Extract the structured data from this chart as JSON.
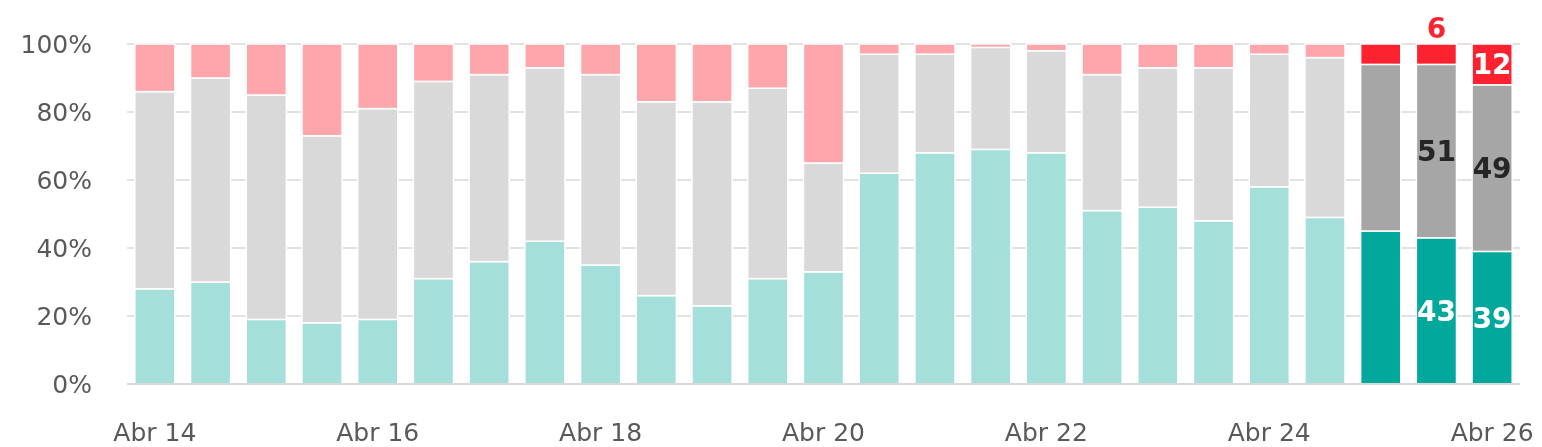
{
  "chart_data": {
    "type": "bar",
    "stacked": true,
    "categories": [
      "Abr 14",
      null,
      null,
      null,
      "Abr 16",
      null,
      null,
      null,
      "Abr 18",
      null,
      null,
      null,
      "Abr 20",
      null,
      null,
      null,
      "Abr 22",
      null,
      null,
      null,
      "Abr 24",
      null,
      null,
      null,
      "Abr 26"
    ],
    "series": [
      {
        "colors": [
          "#a4dfda",
          "#a4dfda",
          "#a4dfda",
          "#a4dfda",
          "#a4dfda",
          "#a4dfda",
          "#a4dfda",
          "#a4dfda",
          "#a4dfda",
          "#a4dfda",
          "#a4dfda",
          "#a4dfda",
          "#a4dfda",
          "#a4dfda",
          "#a4dfda",
          "#a4dfda",
          "#a4dfda",
          "#a4dfda",
          "#a4dfda",
          "#a4dfda",
          "#a4dfda",
          "#a4dfda",
          "#02a89c",
          "#02a89c",
          "#02a89c"
        ],
        "values": [
          28,
          30,
          19,
          18,
          19,
          31,
          36,
          42,
          35,
          26,
          23,
          31,
          33,
          62,
          68,
          69,
          68,
          51,
          52,
          48,
          58,
          49,
          45,
          43,
          39
        ],
        "value_labels": [
          null,
          null,
          null,
          null,
          null,
          null,
          null,
          null,
          null,
          null,
          null,
          null,
          null,
          null,
          null,
          null,
          null,
          null,
          null,
          null,
          null,
          null,
          null,
          "43",
          "39"
        ]
      },
      {
        "colors": [
          "#d9d9d9",
          "#d9d9d9",
          "#d9d9d9",
          "#d9d9d9",
          "#d9d9d9",
          "#d9d9d9",
          "#d9d9d9",
          "#d9d9d9",
          "#d9d9d9",
          "#d9d9d9",
          "#d9d9d9",
          "#d9d9d9",
          "#d9d9d9",
          "#d9d9d9",
          "#d9d9d9",
          "#d9d9d9",
          "#d9d9d9",
          "#d9d9d9",
          "#d9d9d9",
          "#d9d9d9",
          "#d9d9d9",
          "#d9d9d9",
          "#a6a6a6",
          "#a6a6a6",
          "#a6a6a6"
        ],
        "values": [
          58,
          60,
          66,
          55,
          62,
          58,
          55,
          51,
          56,
          57,
          60,
          56,
          32,
          35,
          29,
          30,
          30,
          40,
          41,
          45,
          39,
          47,
          49,
          51,
          49
        ],
        "value_labels": [
          null,
          null,
          null,
          null,
          null,
          null,
          null,
          null,
          null,
          null,
          null,
          null,
          null,
          null,
          null,
          null,
          null,
          null,
          null,
          null,
          null,
          null,
          null,
          "51",
          "49"
        ]
      },
      {
        "colors": [
          "#fea6ab",
          "#fea6ab",
          "#fea6ab",
          "#fea6ab",
          "#fea6ab",
          "#fea6ab",
          "#fea6ab",
          "#fea6ab",
          "#fea6ab",
          "#fea6ab",
          "#fea6ab",
          "#fea6ab",
          "#fea6ab",
          "#fea6ab",
          "#fea6ab",
          "#fea6ab",
          "#fea6ab",
          "#fea6ab",
          "#fea6ab",
          "#fea6ab",
          "#fea6ab",
          "#fea6ab",
          "#fd222f",
          "#fd222f",
          "#fd222f"
        ],
        "values": [
          14,
          10,
          15,
          27,
          19,
          11,
          9,
          7,
          9,
          17,
          17,
          13,
          35,
          3,
          3,
          1,
          2,
          9,
          7,
          7,
          3,
          4,
          6,
          6,
          12
        ],
        "value_labels": [
          null,
          null,
          null,
          null,
          null,
          null,
          null,
          null,
          null,
          null,
          null,
          null,
          null,
          null,
          null,
          null,
          null,
          null,
          null,
          null,
          null,
          null,
          null,
          "6",
          "12"
        ]
      }
    ],
    "ylim": [
      0,
      100
    ],
    "yticks": [
      {
        "value": 0,
        "label": "0%"
      },
      {
        "value": 20,
        "label": "20%"
      },
      {
        "value": 40,
        "label": "40%"
      },
      {
        "value": 60,
        "label": "60%"
      },
      {
        "value": 80,
        "label": "80%"
      },
      {
        "value": 100,
        "label": "100%"
      }
    ],
    "grid": "y"
  }
}
